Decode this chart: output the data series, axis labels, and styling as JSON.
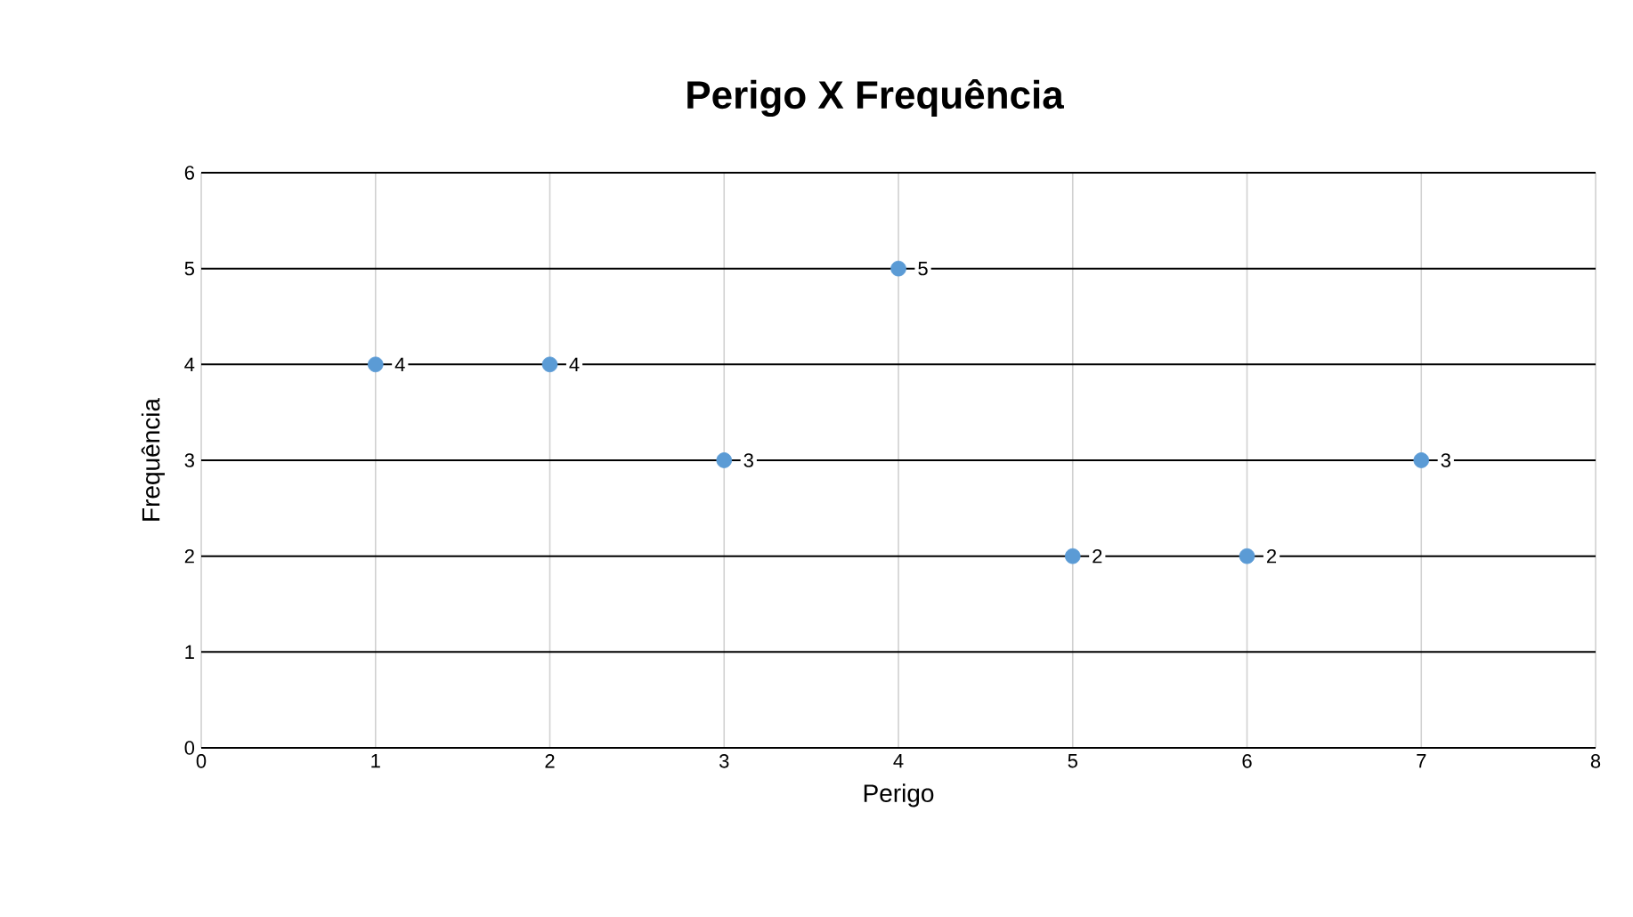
{
  "chart_data": {
    "type": "scatter",
    "title": "Perigo X Frequência",
    "xlabel": "Perigo",
    "ylabel": "Frequência",
    "x": [
      1,
      2,
      3,
      4,
      5,
      6,
      7
    ],
    "values": [
      4,
      4,
      3,
      5,
      2,
      2,
      3
    ],
    "color": "#5b9bd5",
    "marker": "circle",
    "data_labels": true,
    "grid": true,
    "xlim": [
      0,
      8
    ],
    "ylim": [
      0,
      6
    ],
    "xticks": [
      0,
      1,
      2,
      3,
      4,
      5,
      6,
      7,
      8
    ],
    "yticks": [
      0,
      1,
      2,
      3,
      4,
      5,
      6
    ]
  }
}
